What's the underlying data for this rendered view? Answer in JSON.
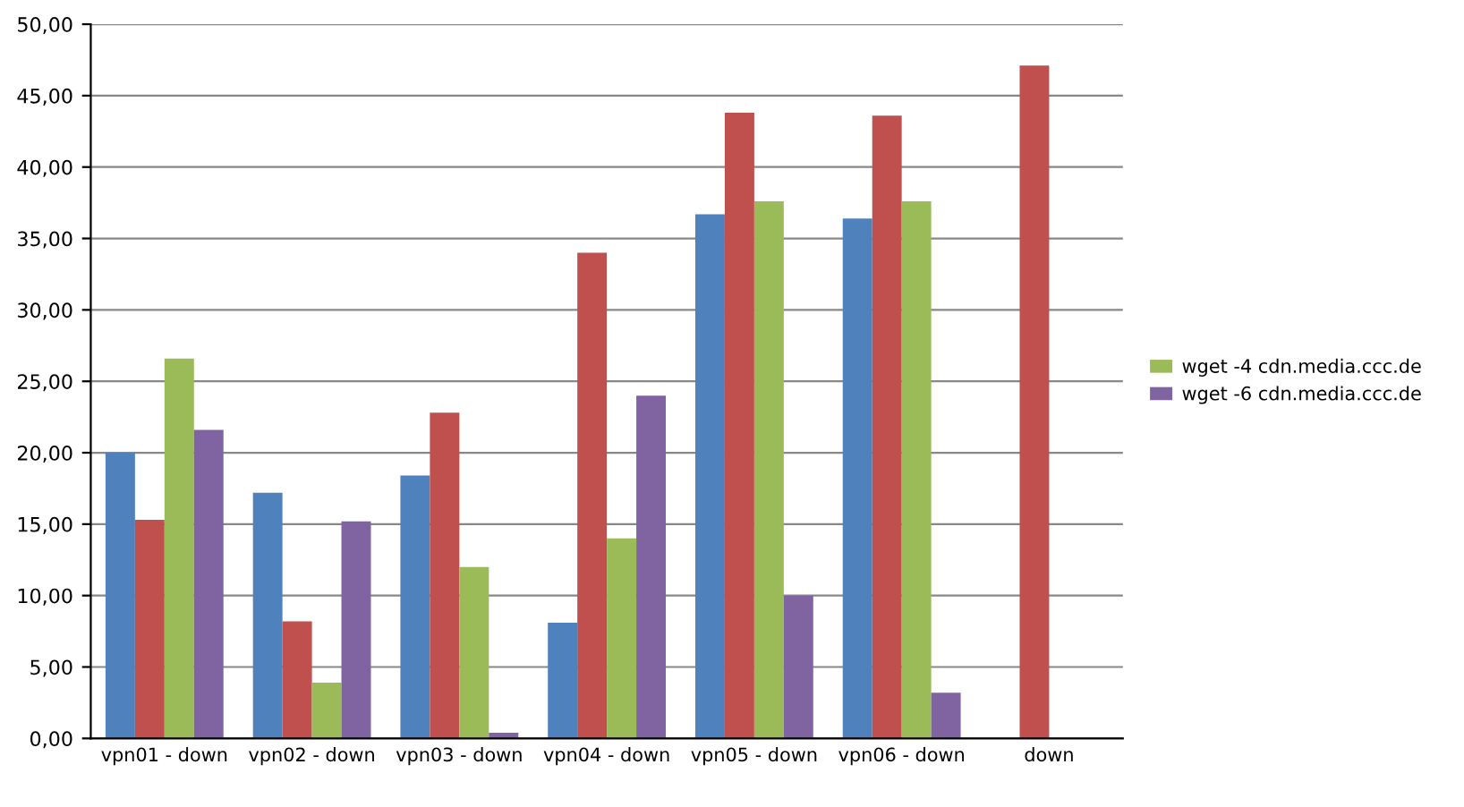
{
  "chart_data": {
    "type": "bar",
    "categories": [
      "vpn01 - down",
      "vpn02 - down",
      "vpn03 - down",
      "vpn04 - down",
      "vpn05 - down",
      "vpn06 - down",
      "down"
    ],
    "series": [
      {
        "color": "#4f81bd",
        "values": [
          20.0,
          17.2,
          18.4,
          8.1,
          36.7,
          36.4,
          null
        ]
      },
      {
        "color": "#c0504d",
        "values": [
          15.3,
          8.2,
          22.8,
          34.0,
          43.8,
          43.6,
          47.1
        ]
      },
      {
        "name": "wget -4 cdn.media.ccc.de",
        "color": "#9bbb59",
        "values": [
          26.6,
          3.9,
          12.0,
          14.0,
          37.6,
          37.6,
          null
        ]
      },
      {
        "name": "wget -6 cdn.media.ccc.de",
        "color": "#8064a2",
        "values": [
          21.6,
          15.2,
          0.4,
          24.0,
          10.0,
          3.2,
          null
        ]
      }
    ],
    "ylim": [
      0,
      50
    ],
    "yticks": [
      {
        "value": 0,
        "label": "0,00"
      },
      {
        "value": 5,
        "label": "5,00"
      },
      {
        "value": 10,
        "label": "10,00"
      },
      {
        "value": 15,
        "label": "15,00"
      },
      {
        "value": 20,
        "label": "20,00"
      },
      {
        "value": 25,
        "label": "25,00"
      },
      {
        "value": 30,
        "label": "30,00"
      },
      {
        "value": 35,
        "label": "35,00"
      },
      {
        "value": 40,
        "label": "40,00"
      },
      {
        "value": 45,
        "label": "45,00"
      },
      {
        "value": 50,
        "label": "50,00"
      }
    ],
    "grid": "y",
    "legend": "right"
  }
}
